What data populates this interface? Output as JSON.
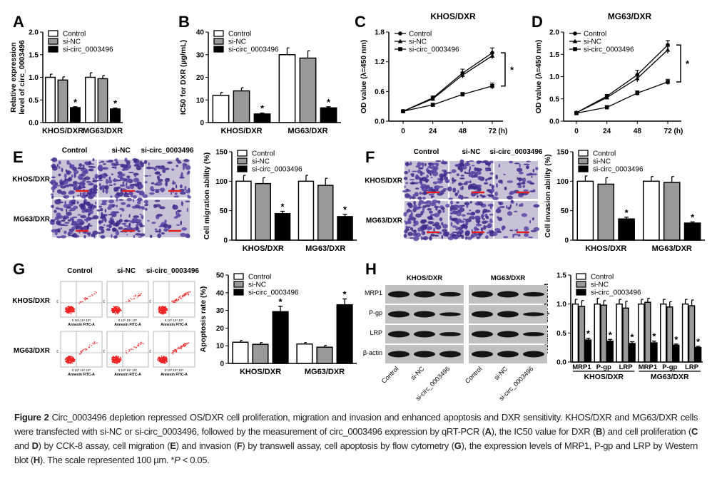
{
  "figure": {
    "panel_labels": [
      "A",
      "B",
      "C",
      "D",
      "E",
      "F",
      "G",
      "H"
    ],
    "conditions": [
      "Control",
      "si-NC",
      "si-circ_0003496"
    ],
    "cell_lines": [
      "KHOS/DXR",
      "MG63/DXR"
    ],
    "flow": {
      "x_axis_label": "Annexin FITC-A",
      "y_axis_label": "PI",
      "ticks": "0 10³ 10⁴ 10⁵"
    },
    "blot": {
      "proteins": [
        "MRP1",
        "P-gp",
        "LRP",
        "β-actin"
      ]
    },
    "colors": {
      "control": "#ffffff",
      "si_nc": "#999999",
      "si_circ": "#000000",
      "stain": "#4a2f8f",
      "scale_bar": "#e02020",
      "flow_dots": "#ee2222"
    }
  },
  "caption": [
    {
      "t": "Figure 2",
      "b": true
    },
    {
      "t": " Circ_0003496 depletion repressed OS/DXR cell proliferation, migration and invasion and enhanced apoptosis and DXR sensitivity. KHOS/DXR and MG63/DXR cells were transfected with si-NC or si-circ_0003496, followed by the measurement of circ_0003496 expression by qRT-PCR ("
    },
    {
      "t": "A",
      "b": true
    },
    {
      "t": "), the IC50 value for DXR ("
    },
    {
      "t": "B",
      "b": true
    },
    {
      "t": ") and cell proliferation ("
    },
    {
      "t": "C",
      "b": true
    },
    {
      "t": " and "
    },
    {
      "t": "D",
      "b": true
    },
    {
      "t": ") by CCK-8 assay, cell migration ("
    },
    {
      "t": "E",
      "b": true
    },
    {
      "t": ") and invasion ("
    },
    {
      "t": "F",
      "b": true
    },
    {
      "t": ") by transwell assay, cell apoptosis by flow cytometry ("
    },
    {
      "t": "G",
      "b": true
    },
    {
      "t": "), the expression levels of MRP1, P-gp and LRP by Western blot ("
    },
    {
      "t": "H",
      "b": true
    },
    {
      "t": "). The scale represented 100 µm. *"
    },
    {
      "t": "P",
      "i": true
    },
    {
      "t": " < 0.05."
    }
  ],
  "chart_data": [
    {
      "panel": "A",
      "type": "bar",
      "title": "",
      "ylabel": [
        "Relative expression",
        "level of circ_0003496"
      ],
      "categories": [
        "KHOS/DXR",
        "MG63/DXR"
      ],
      "ylim": [
        0,
        2
      ],
      "yticks": [
        0,
        0.5,
        1,
        1.5,
        2
      ],
      "ytick_labels": [
        "0.0",
        "0.5",
        "1.0",
        "1.5",
        "2.0"
      ],
      "series": [
        {
          "name": "Control",
          "values": [
            1.0,
            1.0
          ],
          "errors": [
            0.07,
            0.1
          ]
        },
        {
          "name": "si-NC",
          "values": [
            0.94,
            0.97
          ],
          "errors": [
            0.07,
            0.07
          ]
        },
        {
          "name": "si-circ_0003496",
          "values": [
            0.33,
            0.3
          ],
          "errors": [
            0.02,
            0.02
          ],
          "mark": "*"
        }
      ],
      "legend": "top-left"
    },
    {
      "panel": "B",
      "type": "bar",
      "title": "",
      "ylabel": [
        "IC50 for DXR (µg/mL)"
      ],
      "categories": [
        "KHOS/DXR",
        "MG63/DXR"
      ],
      "ylim": [
        0,
        40
      ],
      "yticks": [
        0,
        10,
        20,
        30,
        40
      ],
      "ytick_labels": [
        "0",
        "10",
        "20",
        "30",
        "40"
      ],
      "series": [
        {
          "name": "Control",
          "values": [
            12,
            30
          ],
          "errors": [
            1.3,
            3
          ]
        },
        {
          "name": "si-NC",
          "values": [
            14,
            28.5
          ],
          "errors": [
            1.4,
            3.2
          ]
        },
        {
          "name": "si-circ_0003496",
          "values": [
            3.8,
            6.5
          ],
          "errors": [
            0.4,
            0.5
          ],
          "mark": "*"
        }
      ],
      "legend": "top-left"
    },
    {
      "panel": "C",
      "type": "line",
      "title": "KHOS/DXR",
      "ylabel": [
        "OD value (λ=450 nm)"
      ],
      "x": [
        0,
        24,
        48,
        72
      ],
      "xtick_labels": [
        "0",
        "24",
        "48",
        "72 (h)"
      ],
      "ylim": [
        0,
        1.8
      ],
      "yticks": [
        0,
        0.6,
        1.2,
        1.8
      ],
      "ytick_labels": [
        "0.0",
        "0.6",
        "1.2",
        "1.8"
      ],
      "series": [
        {
          "name": "Control",
          "marker": "circle",
          "values": [
            0.2,
            0.47,
            0.97,
            1.38
          ],
          "errors": [
            0.02,
            0.04,
            0.08,
            0.1
          ]
        },
        {
          "name": "si-NC",
          "marker": "triangle",
          "values": [
            0.2,
            0.45,
            0.93,
            1.32
          ],
          "errors": [
            0.02,
            0.04,
            0.06,
            0.06
          ]
        },
        {
          "name": "si-circ_0003496",
          "marker": "square",
          "values": [
            0.2,
            0.33,
            0.54,
            0.71
          ],
          "errors": [
            0.02,
            0.02,
            0.04,
            0.06
          ]
        }
      ],
      "significance": "*",
      "legend": "top-left"
    },
    {
      "panel": "D",
      "type": "line",
      "title": "MG63/DXR",
      "ylabel": [
        "OD value (λ=450 nm)"
      ],
      "x": [
        0,
        24,
        48,
        72
      ],
      "xtick_labels": [
        "0",
        "24",
        "48",
        "72 (h)"
      ],
      "ylim": [
        0,
        2
      ],
      "yticks": [
        0,
        0.5,
        1,
        1.5,
        2
      ],
      "ytick_labels": [
        "0.0",
        "0.5",
        "1.0",
        "1.5",
        "2.0"
      ],
      "series": [
        {
          "name": "Control",
          "marker": "circle",
          "values": [
            0.19,
            0.56,
            1.04,
            1.71
          ],
          "errors": [
            0.02,
            0.04,
            0.1,
            0.1
          ]
        },
        {
          "name": "si-NC",
          "marker": "triangle",
          "values": [
            0.19,
            0.53,
            0.96,
            1.6
          ],
          "errors": [
            0.02,
            0.04,
            0.08,
            0.08
          ]
        },
        {
          "name": "si-circ_0003496",
          "marker": "square",
          "values": [
            0.18,
            0.31,
            0.63,
            0.88
          ],
          "errors": [
            0.02,
            0.04,
            0.05,
            0.06
          ]
        }
      ],
      "significance": "*",
      "legend": "top-left"
    },
    {
      "panel": "E",
      "type": "bar",
      "title": "",
      "ylabel": [
        "Cell migration ability (%)"
      ],
      "categories": [
        "KHOS/DXR",
        "MG63/DXR"
      ],
      "ylim": [
        0,
        150
      ],
      "yticks": [
        0,
        50,
        100,
        150
      ],
      "ytick_labels": [
        "0",
        "50",
        "100",
        "150"
      ],
      "series": [
        {
          "name": "Control",
          "values": [
            100,
            100
          ],
          "errors": [
            10,
            10
          ]
        },
        {
          "name": "si-NC",
          "values": [
            96,
            93
          ],
          "errors": [
            10,
            12
          ]
        },
        {
          "name": "si-circ_0003496",
          "values": [
            45,
            40
          ],
          "errors": [
            4,
            4
          ],
          "mark": "*"
        }
      ],
      "legend": "top-left"
    },
    {
      "panel": "F",
      "type": "bar",
      "title": "",
      "ylabel": [
        "Cell invasion ability (%)"
      ],
      "categories": [
        "KHOS/DXR",
        "MG63/DXR"
      ],
      "ylim": [
        0,
        150
      ],
      "yticks": [
        0,
        50,
        100,
        150
      ],
      "ytick_labels": [
        "0",
        "50",
        "100",
        "150"
      ],
      "series": [
        {
          "name": "Control",
          "values": [
            100,
            100
          ],
          "errors": [
            9,
            8
          ]
        },
        {
          "name": "si-NC",
          "values": [
            95,
            98
          ],
          "errors": [
            11,
            10
          ]
        },
        {
          "name": "si-circ_0003496",
          "values": [
            36,
            29
          ],
          "errors": [
            3,
            2
          ],
          "mark": "*"
        }
      ],
      "legend": "top-left"
    },
    {
      "panel": "G",
      "type": "bar",
      "title": "",
      "ylabel": [
        "Apoptosis rate (%)"
      ],
      "categories": [
        "KHOS/DXR",
        "MG63/DXR"
      ],
      "ylim": [
        0,
        50
      ],
      "yticks": [
        0,
        10,
        20,
        30,
        40,
        50
      ],
      "ytick_labels": [
        "0",
        "10",
        "20",
        "30",
        "40",
        "50"
      ],
      "series": [
        {
          "name": "Control",
          "values": [
            12,
            11
          ],
          "errors": [
            1,
            0.8
          ]
        },
        {
          "name": "si-NC",
          "values": [
            10.8,
            9.2
          ],
          "errors": [
            1,
            1
          ]
        },
        {
          "name": "si-circ_0003496",
          "values": [
            29.3,
            33.2
          ],
          "errors": [
            3,
            3.3
          ],
          "mark": "*"
        }
      ],
      "legend": "top-left"
    },
    {
      "panel": "H",
      "type": "bar",
      "title": "",
      "ylabel": [
        "Relative expression"
      ],
      "categories": [
        "MRP1",
        "P-gp",
        "LRP",
        "MRP1",
        "P-gp",
        "LRP"
      ],
      "groups": [
        "KHOS/DXR",
        "MG63/DXR"
      ],
      "ylim": [
        0,
        1.5
      ],
      "yticks": [
        0,
        0.5,
        1,
        1.5
      ],
      "ytick_labels": [
        "0.0",
        "0.5",
        "1.0",
        "1.5"
      ],
      "series": [
        {
          "name": "Control",
          "values": [
            1,
            1,
            1,
            1,
            1,
            1
          ],
          "errors": [
            0.08,
            0.1,
            0.08,
            0.08,
            0.08,
            0.08
          ]
        },
        {
          "name": "si-NC",
          "values": [
            0.96,
            0.98,
            0.93,
            1.03,
            0.95,
            0.97
          ],
          "errors": [
            0.1,
            0.08,
            0.12,
            0.07,
            0.09,
            0.1
          ]
        },
        {
          "name": "si-circ_0003496",
          "values": [
            0.38,
            0.36,
            0.32,
            0.33,
            0.29,
            0.25
          ],
          "errors": [
            0.03,
            0.03,
            0.03,
            0.03,
            0.02,
            0.02
          ],
          "mark": "*"
        }
      ],
      "legend": "top-left"
    }
  ]
}
